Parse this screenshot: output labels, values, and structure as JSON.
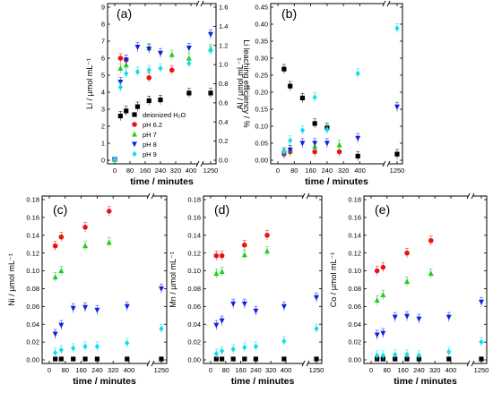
{
  "colors": {
    "deionized": "#000000",
    "pH 6.2": "#ee1111",
    "pH 7": "#22cc22",
    "pH 8": "#1122dd",
    "pH 9": "#11ddee"
  },
  "chart_data": [
    {
      "type": "scatter",
      "panel_label": "(a)",
      "xlabel": "time / minutes",
      "ylabel": "Li / µmol mL⁻¹",
      "ylabel_right": "Li leaching efficiency / %",
      "x_ticks": [
        "0",
        "80",
        "160",
        "240",
        "320",
        "400",
        "1250"
      ],
      "y_ticks": [
        "0",
        "1",
        "2",
        "3",
        "4",
        "5",
        "6",
        "7",
        "8",
        "9"
      ],
      "y_right_ticks": [
        "0.0",
        "0.2",
        "0.4",
        "0.6",
        "0.8",
        "1.0",
        "1.2",
        "1.4",
        "1.6"
      ],
      "ylim": [
        0,
        9
      ],
      "axis_break": true,
      "legend": [
        "deionized H₂O",
        "pH 6.2",
        "pH 7",
        "pH 8",
        "pH 9"
      ],
      "series": [
        {
          "name": "deionized H₂O",
          "color_key": "deionized",
          "marker": "square",
          "x": [
            0,
            30,
            60,
            120,
            180,
            240,
            390,
            1250
          ],
          "y": [
            0.05,
            2.6,
            2.9,
            3.15,
            3.5,
            3.55,
            3.95,
            3.95
          ]
        },
        {
          "name": "pH 6.2",
          "color_key": "pH 6.2",
          "marker": "circle",
          "x": [
            0,
            30,
            60,
            180,
            300
          ],
          "y": [
            0.05,
            6.0,
            5.9,
            4.85,
            5.3
          ]
        },
        {
          "name": "pH 7",
          "color_key": "pH 7",
          "marker": "triangle-up",
          "x": [
            0,
            30,
            60,
            180,
            300,
            390,
            1250
          ],
          "y": [
            0.05,
            5.4,
            5.6,
            6.6,
            6.2,
            6.0,
            6.55
          ]
        },
        {
          "name": "pH 8",
          "color_key": "pH 8",
          "marker": "triangle-down",
          "x": [
            0,
            30,
            60,
            120,
            180,
            240,
            390,
            1250
          ],
          "y": [
            0.05,
            4.6,
            5.9,
            6.65,
            6.55,
            6.3,
            6.6,
            7.4
          ]
        },
        {
          "name": "pH 9",
          "color_key": "pH 9",
          "marker": "diamond",
          "x": [
            0,
            30,
            60,
            120,
            180,
            240,
            390,
            1250
          ],
          "y": [
            0.05,
            4.3,
            5.1,
            5.2,
            5.3,
            5.4,
            5.7,
            6.45
          ]
        }
      ]
    },
    {
      "type": "scatter",
      "panel_label": "(b)",
      "xlabel": "time / minutes",
      "ylabel": "Al / µmol mL⁻¹",
      "x_ticks": [
        "0",
        "80",
        "160",
        "240",
        "320",
        "400",
        "1250"
      ],
      "y_ticks": [
        "0.00",
        "0.05",
        "0.10",
        "0.15",
        "0.20",
        "0.25",
        "0.30",
        "0.35",
        "0.40",
        "0.45"
      ],
      "ylim": [
        0,
        0.45
      ],
      "axis_break": true,
      "series": [
        {
          "name": "deionized H₂O",
          "color_key": "deionized",
          "marker": "square",
          "x": [
            30,
            60,
            120,
            180,
            240,
            390,
            1250
          ],
          "y": [
            0.268,
            0.218,
            0.183,
            0.108,
            0.095,
            0.012,
            0.018
          ]
        },
        {
          "name": "pH 6.2",
          "color_key": "pH 6.2",
          "marker": "circle",
          "x": [
            30,
            60,
            180,
            300
          ],
          "y": [
            0.018,
            0.025,
            0.025,
            0.025
          ]
        },
        {
          "name": "pH 7",
          "color_key": "pH 7",
          "marker": "triangle-up",
          "x": [
            30,
            60,
            180,
            300
          ],
          "y": [
            0.025,
            0.03,
            0.04,
            0.045
          ]
        },
        {
          "name": "pH 8",
          "color_key": "pH 8",
          "marker": "triangle-down",
          "x": [
            30,
            60,
            120,
            180,
            240,
            390,
            1250
          ],
          "y": [
            0.02,
            0.03,
            0.05,
            0.05,
            0.05,
            0.065,
            0.157
          ]
        },
        {
          "name": "pH 9",
          "color_key": "pH 9",
          "marker": "diamond",
          "x": [
            30,
            60,
            120,
            180,
            240,
            390,
            1250
          ],
          "y": [
            0.025,
            0.058,
            0.088,
            0.185,
            0.09,
            0.255,
            0.388
          ]
        }
      ]
    },
    {
      "type": "scatter",
      "panel_label": "(c)",
      "xlabel": "time / minutes",
      "ylabel": "Ni / µmol mL⁻¹",
      "x_ticks": [
        "0",
        "80",
        "160",
        "240",
        "320",
        "400",
        "1250"
      ],
      "y_ticks": [
        "0.00",
        "0.02",
        "0.04",
        "0.06",
        "0.08",
        "0.10",
        "0.12",
        "0.14",
        "0.16",
        "0.18"
      ],
      "ylim": [
        0,
        0.18
      ],
      "axis_break": true,
      "series": [
        {
          "name": "deionized H₂O",
          "color_key": "deionized",
          "marker": "square",
          "x": [
            30,
            60,
            120,
            180,
            240,
            390,
            1250
          ],
          "y": [
            0.001,
            0.001,
            0.001,
            0.001,
            0.001,
            0.001,
            0.001
          ]
        },
        {
          "name": "pH 6.2",
          "color_key": "pH 6.2",
          "marker": "circle",
          "x": [
            30,
            60,
            180,
            300
          ],
          "y": [
            0.128,
            0.138,
            0.149,
            0.167
          ]
        },
        {
          "name": "pH 7",
          "color_key": "pH 7",
          "marker": "triangle-up",
          "x": [
            30,
            60,
            180,
            300
          ],
          "y": [
            0.093,
            0.1,
            0.128,
            0.132
          ]
        },
        {
          "name": "pH 8",
          "color_key": "pH 8",
          "marker": "triangle-down",
          "x": [
            30,
            60,
            120,
            180,
            240,
            390,
            1250
          ],
          "y": [
            0.029,
            0.039,
            0.058,
            0.059,
            0.056,
            0.06,
            0.08
          ]
        },
        {
          "name": "pH 9",
          "color_key": "pH 9",
          "marker": "diamond",
          "x": [
            30,
            60,
            120,
            180,
            240,
            390,
            1250
          ],
          "y": [
            0.008,
            0.011,
            0.013,
            0.015,
            0.015,
            0.019,
            0.035
          ]
        }
      ]
    },
    {
      "type": "scatter",
      "panel_label": "(d)",
      "xlabel": "time / minutes",
      "ylabel": "Mn / µmol mL⁻¹",
      "x_ticks": [
        "0",
        "80",
        "160",
        "240",
        "320",
        "400",
        "1250"
      ],
      "y_ticks": [
        "0.00",
        "0.02",
        "0.04",
        "0.06",
        "0.08",
        "0.10",
        "0.12",
        "0.14",
        "0.16",
        "0.18"
      ],
      "ylim": [
        0,
        0.18
      ],
      "axis_break": true,
      "series": [
        {
          "name": "deionized H₂O",
          "color_key": "deionized",
          "marker": "square",
          "x": [
            30,
            60,
            120,
            180,
            240,
            390,
            1250
          ],
          "y": [
            0.001,
            0.001,
            0.001,
            0.001,
            0.001,
            0.001,
            0.001
          ]
        },
        {
          "name": "pH 6.2",
          "color_key": "pH 6.2",
          "marker": "circle",
          "x": [
            30,
            60,
            180,
            300
          ],
          "y": [
            0.117,
            0.117,
            0.129,
            0.14
          ]
        },
        {
          "name": "pH 7",
          "color_key": "pH 7",
          "marker": "triangle-up",
          "x": [
            30,
            60,
            180,
            300
          ],
          "y": [
            0.097,
            0.099,
            0.118,
            0.122
          ]
        },
        {
          "name": "pH 8",
          "color_key": "pH 8",
          "marker": "triangle-down",
          "x": [
            30,
            60,
            120,
            180,
            240,
            390,
            1250
          ],
          "y": [
            0.039,
            0.044,
            0.063,
            0.063,
            0.055,
            0.06,
            0.07
          ]
        },
        {
          "name": "pH 9",
          "color_key": "pH 9",
          "marker": "diamond",
          "x": [
            30,
            60,
            120,
            180,
            240,
            390,
            1250
          ],
          "y": [
            0.007,
            0.01,
            0.012,
            0.014,
            0.015,
            0.021,
            0.035
          ]
        }
      ]
    },
    {
      "type": "scatter",
      "panel_label": "(e)",
      "xlabel": "time / minutes",
      "ylabel": "Co / µmol mL⁻¹",
      "x_ticks": [
        "0",
        "80",
        "160",
        "240",
        "320",
        "400",
        "1250"
      ],
      "y_ticks": [
        "0.00",
        "0.02",
        "0.04",
        "0.06",
        "0.08",
        "0.10",
        "0.12",
        "0.14",
        "0.16",
        "0.18"
      ],
      "ylim": [
        0,
        0.18
      ],
      "axis_break": true,
      "series": [
        {
          "name": "deionized H₂O",
          "color_key": "deionized",
          "marker": "square",
          "x": [
            30,
            60,
            120,
            180,
            240,
            390,
            1250
          ],
          "y": [
            0.001,
            0.001,
            0.001,
            0.001,
            0.001,
            0.001,
            0.001
          ]
        },
        {
          "name": "pH 6.2",
          "color_key": "pH 6.2",
          "marker": "circle",
          "x": [
            30,
            60,
            180,
            300
          ],
          "y": [
            0.1,
            0.104,
            0.12,
            0.134
          ]
        },
        {
          "name": "pH 7",
          "color_key": "pH 7",
          "marker": "triangle-up",
          "x": [
            30,
            60,
            180,
            300
          ],
          "y": [
            0.067,
            0.073,
            0.088,
            0.097
          ]
        },
        {
          "name": "pH 8",
          "color_key": "pH 8",
          "marker": "triangle-down",
          "x": [
            30,
            60,
            120,
            180,
            240,
            390,
            1250
          ],
          "y": [
            0.028,
            0.03,
            0.048,
            0.049,
            0.046,
            0.048,
            0.065
          ]
        },
        {
          "name": "pH 9",
          "color_key": "pH 9",
          "marker": "diamond",
          "x": [
            30,
            60,
            120,
            180,
            240,
            390,
            1250
          ],
          "y": [
            0.005,
            0.005,
            0.006,
            0.006,
            0.005,
            0.009,
            0.02
          ]
        }
      ]
    }
  ]
}
